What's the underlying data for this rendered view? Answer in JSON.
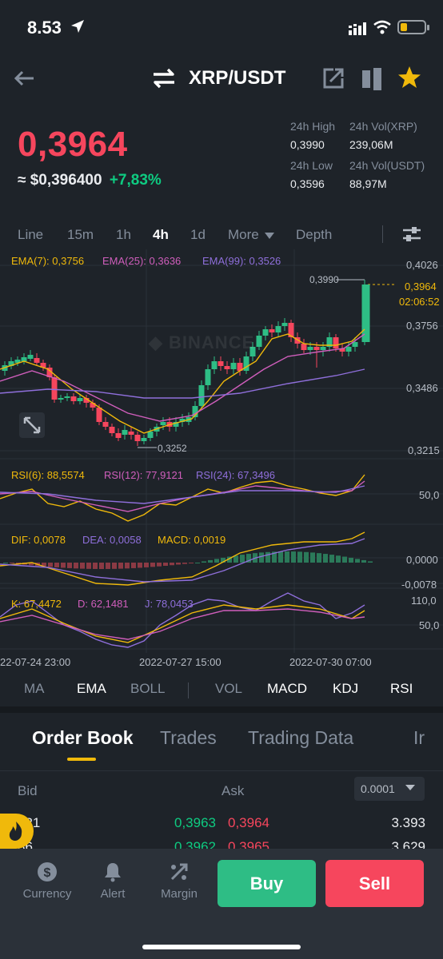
{
  "status": {
    "time": "8.53"
  },
  "header": {
    "pair": "XRP/USDT"
  },
  "ticker": {
    "last_price": "0,3964",
    "usd_price": "≈ $0,396400",
    "change": "+7,83%",
    "high_label": "24h High",
    "high_value": "0,3990",
    "low_label": "24h Low",
    "low_value": "0,3596",
    "vol_base_label": "24h Vol(XRP)",
    "vol_base_value": "239,06M",
    "vol_quote_label": "24h Vol(USDT)",
    "vol_quote_value": "88,97M"
  },
  "intervals": {
    "items": [
      "Line",
      "15m",
      "1h",
      "4h",
      "1d",
      "More",
      "Depth"
    ],
    "active": "4h"
  },
  "chart": {
    "ema_labels": [
      "EMA(7): 0,3756",
      "EMA(25): 0,3636",
      "EMA(99): 0,3526"
    ],
    "ema_colors": [
      "#f0b90b",
      "#d05ebc",
      "#8f6fdb"
    ],
    "price_axis": [
      "0,4026",
      "0,3756",
      "0,3486",
      "0,3215"
    ],
    "current_price_tag": "0,3964",
    "countdown": "02:06:52",
    "high_marker": "0,3990",
    "low_marker": "0,3252",
    "watermark": "BINANCE",
    "rsi_labels": [
      "RSI(6): 88,5574",
      "RSI(12): 77,9121",
      "RSI(24): 67,3496"
    ],
    "rsi_axis": "50,0",
    "macd_labels": [
      "DIF: 0,0078",
      "DEA: 0,0058",
      "MACD: 0,0019"
    ],
    "macd_axis": [
      "0,0000",
      "-0,0078"
    ],
    "kdj_labels": [
      "K: 67,4472",
      "D: 62,1481",
      "J: 78,0453"
    ],
    "kdj_axis": [
      "110,0",
      "50,0"
    ],
    "time_labels": [
      "22-07-24 23:00",
      "2022-07-27 15:00",
      "2022-07-30 07:00"
    ]
  },
  "indicators": {
    "main": [
      "MA",
      "EMA",
      "BOLL"
    ],
    "sub": [
      "VOL",
      "MACD",
      "KDJ",
      "RSI"
    ]
  },
  "tabs": [
    "Order Book",
    "Trades",
    "Trading Data",
    "Ir"
  ],
  "orderbook": {
    "bid_label": "Bid",
    "ask_label": "Ask",
    "precision": "0.0001",
    "rows": [
      {
        "bid_qty": "921",
        "bid_price": "0,3963",
        "ask_price": "0,3964",
        "ask_qty": "3.393"
      },
      {
        "bid_qty": "36",
        "bid_price": "0,3962",
        "ask_price": "0,3965",
        "ask_qty": "3.629"
      }
    ]
  },
  "bottom_nav": {
    "currency": "Currency",
    "alert": "Alert",
    "margin": "Margin",
    "buy": "Buy",
    "sell": "Sell"
  }
}
